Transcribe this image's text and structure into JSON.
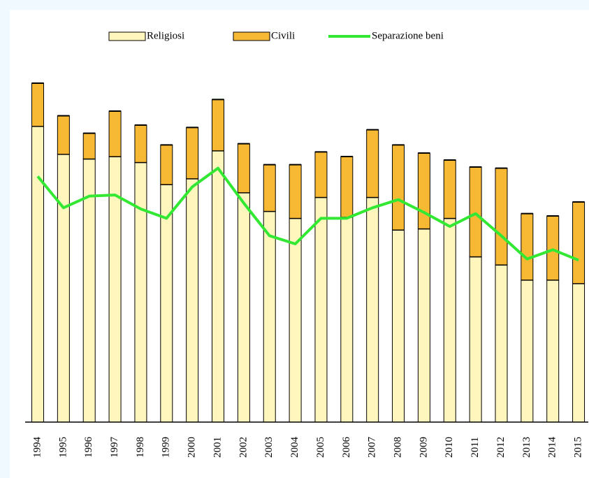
{
  "chart_data": {
    "type": "bar",
    "categories": [
      "1994",
      "1995",
      "1996",
      "1997",
      "1998",
      "1999",
      "2000",
      "2001",
      "2002",
      "2003",
      "2004",
      "2005",
      "2006",
      "2007",
      "2008",
      "2009",
      "2010",
      "2011",
      "2012",
      "2013",
      "2014",
      "2015"
    ],
    "series": [
      {
        "name": "Religiosi",
        "color": "#fff6bd",
        "values": [
          254,
          230,
          226,
          228,
          223,
          204,
          209,
          233,
          197,
          181,
          175,
          193,
          176,
          193,
          165,
          166,
          175,
          142,
          135,
          122,
          122,
          119
        ]
      },
      {
        "name": "Civili",
        "color": "#f7b934",
        "values": [
          37,
          33,
          22,
          39,
          32,
          34,
          44,
          44,
          42,
          40,
          46,
          39,
          52,
          58,
          73,
          65,
          50,
          77,
          83,
          57,
          55,
          70
        ]
      },
      {
        "name": "Separazione beni",
        "type": "line",
        "color": "#33e833",
        "values": [
          211,
          184,
          194,
          195,
          183,
          175,
          202,
          218,
          188,
          160,
          153,
          175,
          175,
          184,
          191,
          180,
          168,
          179,
          160,
          140,
          148,
          139
        ]
      }
    ],
    "stacked": true,
    "ylim": [
      0,
      300
    ]
  }
}
